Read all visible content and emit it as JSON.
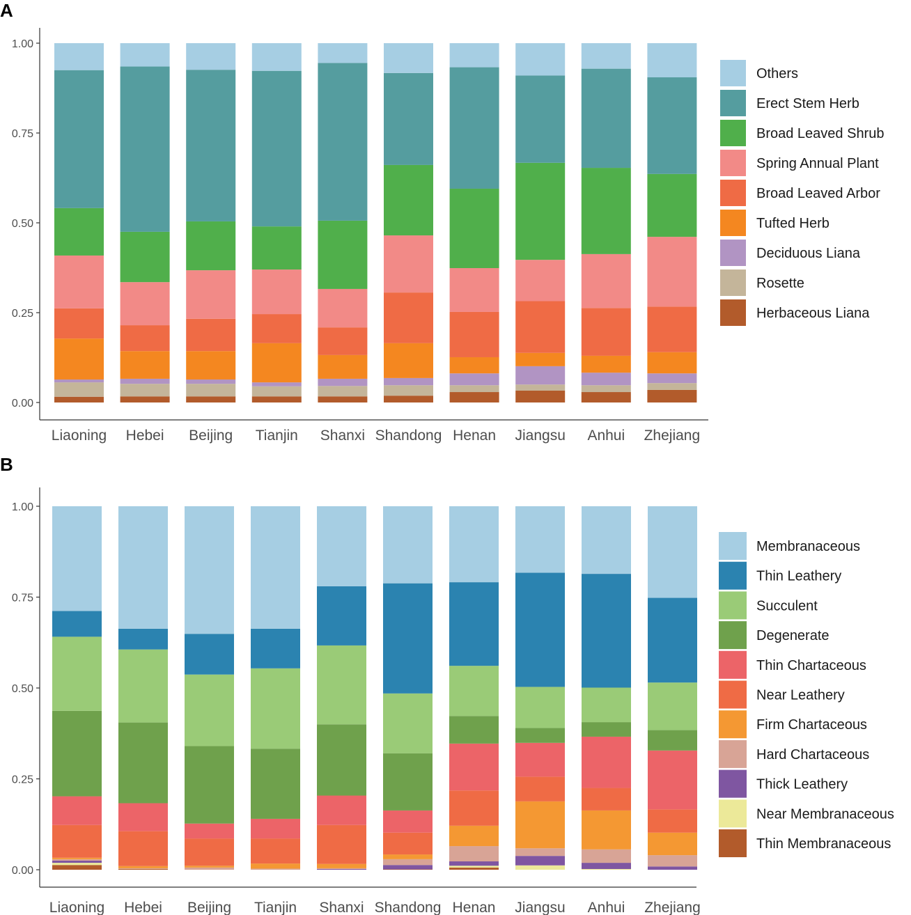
{
  "chart_data": [
    {
      "type": "bar",
      "stacked": true,
      "panel_label": "A",
      "title": "",
      "xlabel": "",
      "ylabel": "",
      "ylim": [
        0,
        1
      ],
      "yticks": [
        "0.00",
        "0.25",
        "0.50",
        "0.75",
        "1.00"
      ],
      "grid": false,
      "legend_position": "right",
      "categories": [
        "Liaoning",
        "Hebei",
        "Beijing",
        "Tianjin",
        "Shanxi",
        "Shandong",
        "Henan",
        "Jiangsu",
        "Anhui",
        "Zhejiang"
      ],
      "series": [
        {
          "name": "Others",
          "color": "#a6cee3",
          "values": [
            0.075,
            0.065,
            0.074,
            0.077,
            0.055,
            0.083,
            0.067,
            0.09,
            0.071,
            0.095
          ]
        },
        {
          "name": "Erect Stem Herb",
          "color": "#559d9f",
          "values": [
            0.384,
            0.46,
            0.422,
            0.433,
            0.439,
            0.256,
            0.338,
            0.243,
            0.276,
            0.269
          ]
        },
        {
          "name": "Broad Leaved Shrub",
          "color": "#50af4b",
          "values": [
            0.132,
            0.14,
            0.136,
            0.12,
            0.19,
            0.196,
            0.221,
            0.27,
            0.24,
            0.175
          ]
        },
        {
          "name": "Spring Annual Plant",
          "color": "#f28a87",
          "values": [
            0.147,
            0.12,
            0.135,
            0.124,
            0.107,
            0.159,
            0.122,
            0.115,
            0.15,
            0.194
          ]
        },
        {
          "name": "Broad Leaved Arbor",
          "color": "#ef6b45",
          "values": [
            0.084,
            0.072,
            0.09,
            0.081,
            0.077,
            0.141,
            0.126,
            0.144,
            0.133,
            0.127
          ]
        },
        {
          "name": "Tufted Herb",
          "color": "#f48720",
          "values": [
            0.114,
            0.077,
            0.079,
            0.109,
            0.066,
            0.097,
            0.045,
            0.037,
            0.047,
            0.059
          ]
        },
        {
          "name": "Deciduous Liana",
          "color": "#b194c3",
          "values": [
            0.008,
            0.014,
            0.012,
            0.011,
            0.02,
            0.02,
            0.033,
            0.051,
            0.035,
            0.027
          ]
        },
        {
          "name": "Rosette",
          "color": "#c4b59a",
          "values": [
            0.04,
            0.035,
            0.035,
            0.028,
            0.029,
            0.029,
            0.019,
            0.017,
            0.019,
            0.019
          ]
        },
        {
          "name": "Herbaceous Liana",
          "color": "#b25b2b",
          "values": [
            0.016,
            0.017,
            0.017,
            0.017,
            0.017,
            0.019,
            0.029,
            0.033,
            0.029,
            0.035
          ]
        }
      ]
    },
    {
      "type": "bar",
      "stacked": true,
      "panel_label": "B",
      "title": "",
      "xlabel": "",
      "ylabel": "",
      "ylim": [
        0,
        1
      ],
      "yticks": [
        "0.00",
        "0.25",
        "0.50",
        "0.75",
        "1.00"
      ],
      "grid": false,
      "legend_position": "right",
      "categories": [
        "Liaoning",
        "Hebei",
        "Beijing",
        "Tianjin",
        "Shanxi",
        "Shandong",
        "Henan",
        "Jiangsu",
        "Anhui",
        "Zhejiang"
      ],
      "series": [
        {
          "name": "Membranaceous",
          "color": "#a6cee3",
          "values": [
            0.288,
            0.337,
            0.351,
            0.337,
            0.22,
            0.212,
            0.209,
            0.183,
            0.186,
            0.252
          ]
        },
        {
          "name": "Thin Leathery",
          "color": "#2b83b0",
          "values": [
            0.071,
            0.057,
            0.112,
            0.109,
            0.163,
            0.303,
            0.23,
            0.314,
            0.313,
            0.233
          ]
        },
        {
          "name": "Succulent",
          "color": "#9acb77",
          "values": [
            0.204,
            0.201,
            0.197,
            0.221,
            0.217,
            0.165,
            0.138,
            0.113,
            0.095,
            0.131
          ]
        },
        {
          "name": "Degenerate",
          "color": "#6fa14c",
          "values": [
            0.235,
            0.222,
            0.213,
            0.193,
            0.196,
            0.157,
            0.076,
            0.041,
            0.04,
            0.056
          ]
        },
        {
          "name": "Thin Chartaceous",
          "color": "#ec6468",
          "values": [
            0.079,
            0.077,
            0.041,
            0.054,
            0.081,
            0.061,
            0.129,
            0.093,
            0.141,
            0.162
          ]
        },
        {
          "name": "Near Leathery",
          "color": "#ef6b45",
          "values": [
            0.09,
            0.096,
            0.075,
            0.069,
            0.107,
            0.06,
            0.097,
            0.068,
            0.062,
            0.064
          ]
        },
        {
          "name": "Firm Chartaceous",
          "color": "#f49833",
          "values": [
            0.004,
            0.006,
            0.005,
            0.014,
            0.012,
            0.013,
            0.056,
            0.129,
            0.107,
            0.062
          ]
        },
        {
          "name": "Hard Chartaceous",
          "color": "#d8a496",
          "values": [
            0.004,
            0.002,
            0.006,
            0.003,
            0.002,
            0.016,
            0.042,
            0.021,
            0.037,
            0.031
          ]
        },
        {
          "name": "Thick Leathery",
          "color": "#7f56a1",
          "values": [
            0.006,
            0.0,
            0.0,
            0.0,
            0.002,
            0.012,
            0.012,
            0.026,
            0.017,
            0.009
          ]
        },
        {
          "name": "Near Membranaceous",
          "color": "#ece999",
          "values": [
            0.006,
            0.0,
            0.0,
            0.0,
            0.0,
            0.0,
            0.005,
            0.012,
            0.002,
            0.0
          ]
        },
        {
          "name": "Thin Membranaceous",
          "color": "#b25b2b",
          "values": [
            0.013,
            0.002,
            0.0,
            0.0,
            0.0,
            0.001,
            0.006,
            0.0,
            0.0,
            0.0
          ]
        }
      ]
    }
  ]
}
